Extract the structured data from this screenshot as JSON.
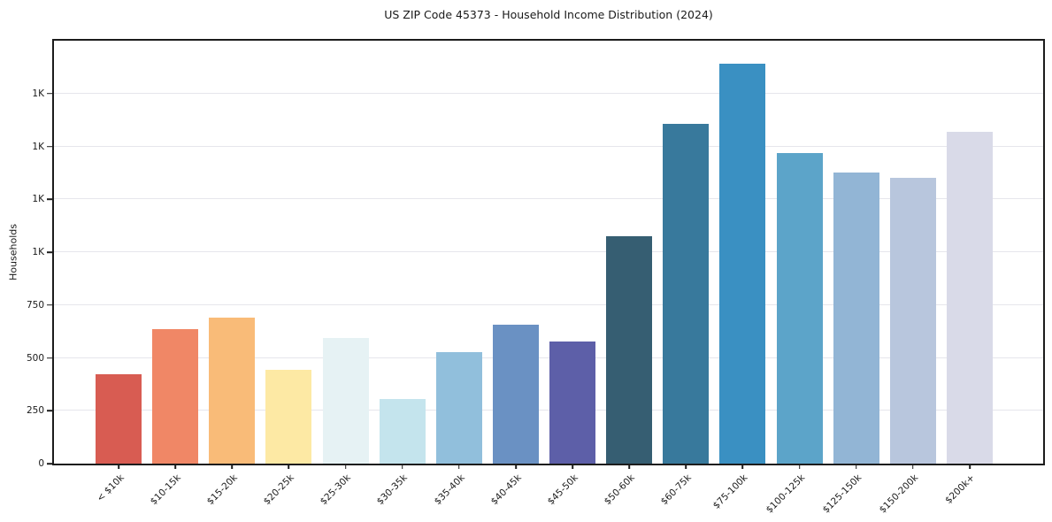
{
  "chart_data": {
    "type": "bar",
    "title": "US ZIP Code 45373 - Household Income Distribution (2024)",
    "xlabel": "",
    "ylabel": "Households",
    "categories": [
      "< $10k",
      "$10-15k",
      "$15-20k",
      "$20-25k",
      "$25-30k",
      "$30-35k",
      "$35-40k",
      "$40-45k",
      "$45-50k",
      "$50-60k",
      "$60-75k",
      "$75-100k",
      "$100-125k",
      "$125-150k",
      "$150-200k",
      "$200k+"
    ],
    "values": [
      423,
      634,
      690,
      445,
      594,
      307,
      528,
      656,
      576,
      1075,
      1608,
      1893,
      1469,
      1377,
      1352,
      1571
    ],
    "bar_colors": [
      "#d85c52",
      "#f08766",
      "#f9bb78",
      "#fde9a4",
      "#e6f2f4",
      "#c4e4ed",
      "#91bfdc",
      "#6a91c3",
      "#5d5fa8",
      "#365e72",
      "#38799c",
      "#3a90c2",
      "#5ca4c9",
      "#92b5d5",
      "#b8c6dd",
      "#d9dae8"
    ],
    "ylim": [
      0,
      2000
    ],
    "yticks": [
      {
        "value": 0,
        "label": "0"
      },
      {
        "value": 250,
        "label": "250"
      },
      {
        "value": 500,
        "label": "500"
      },
      {
        "value": 750,
        "label": "750"
      },
      {
        "value": 1000,
        "label": "1K"
      },
      {
        "value": 1250,
        "label": "1K"
      },
      {
        "value": 1500,
        "label": "1K"
      },
      {
        "value": 1750,
        "label": "1K"
      }
    ],
    "grid": "horizontal",
    "legend": "none"
  },
  "style": {
    "background": "#ffffff",
    "spine_color": "#1c1c1c",
    "grid_color": "#e6e6ec",
    "text_color": "#1a1a1a"
  }
}
